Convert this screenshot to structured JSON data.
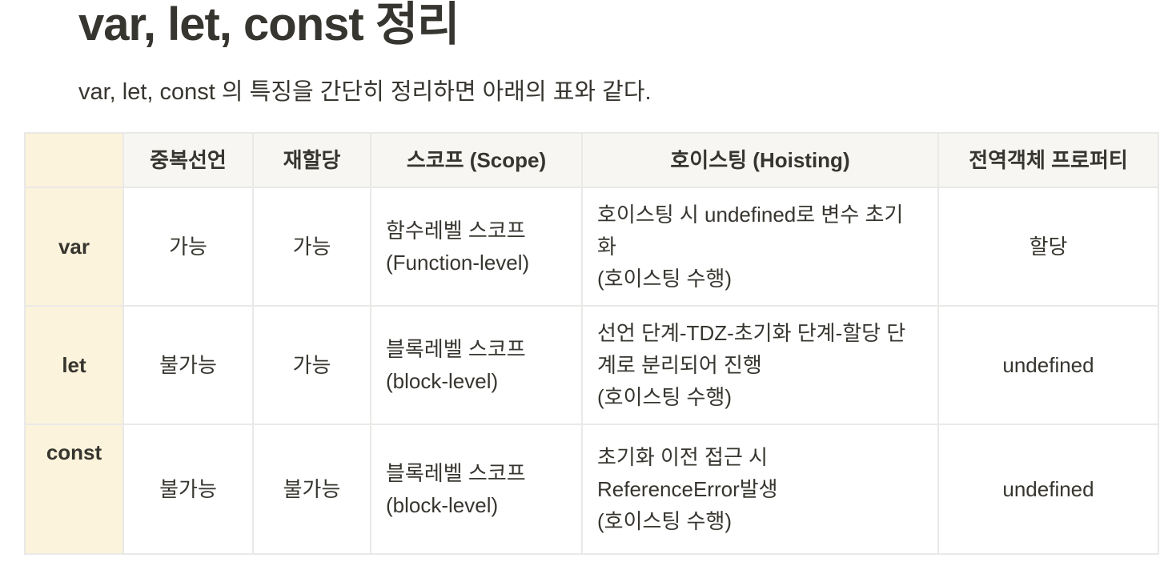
{
  "title": "var, let, const 정리",
  "intro": "var, let, const 의 특징을 간단히 정리하면 아래의 표와 같다.",
  "table": {
    "headers": [
      "",
      "중복선언",
      "재할당",
      "스코프 (Scope)",
      "호이스팅 (Hoisting)",
      "전역객체 프로퍼티"
    ],
    "rows": [
      {
        "name": "var",
        "redeclare": "가능",
        "reassign": "가능",
        "scope": [
          "함수레벨 스코프",
          "(Function-level)"
        ],
        "hoisting": [
          "호이스팅 시 undefined로 변수 초기",
          "화",
          "(호이스팅 수행)"
        ],
        "global_prop": "할당"
      },
      {
        "name": "let",
        "redeclare": "불가능",
        "reassign": "가능",
        "scope": [
          "블록레벨 스코프",
          "(block-level)"
        ],
        "hoisting": [
          "선언 단계-TDZ-초기화 단계-할당 단",
          "계로 분리되어 진행",
          "(호이스팅 수행)"
        ],
        "global_prop": "undefined"
      },
      {
        "name": "const",
        "redeclare": "불가능",
        "reassign": "불가능",
        "scope": [
          "블록레벨 스코프",
          "(block-level)"
        ],
        "hoisting": [
          "초기화 이전 접근 시",
          "ReferenceError발생",
          "(호이스팅 수행)"
        ],
        "global_prop": "undefined"
      }
    ]
  },
  "colors": {
    "text": "#37352f",
    "header_bg": "#f7f6f3",
    "rowhead_bg": "#fbf3db",
    "border": "#e9e9e7"
  }
}
